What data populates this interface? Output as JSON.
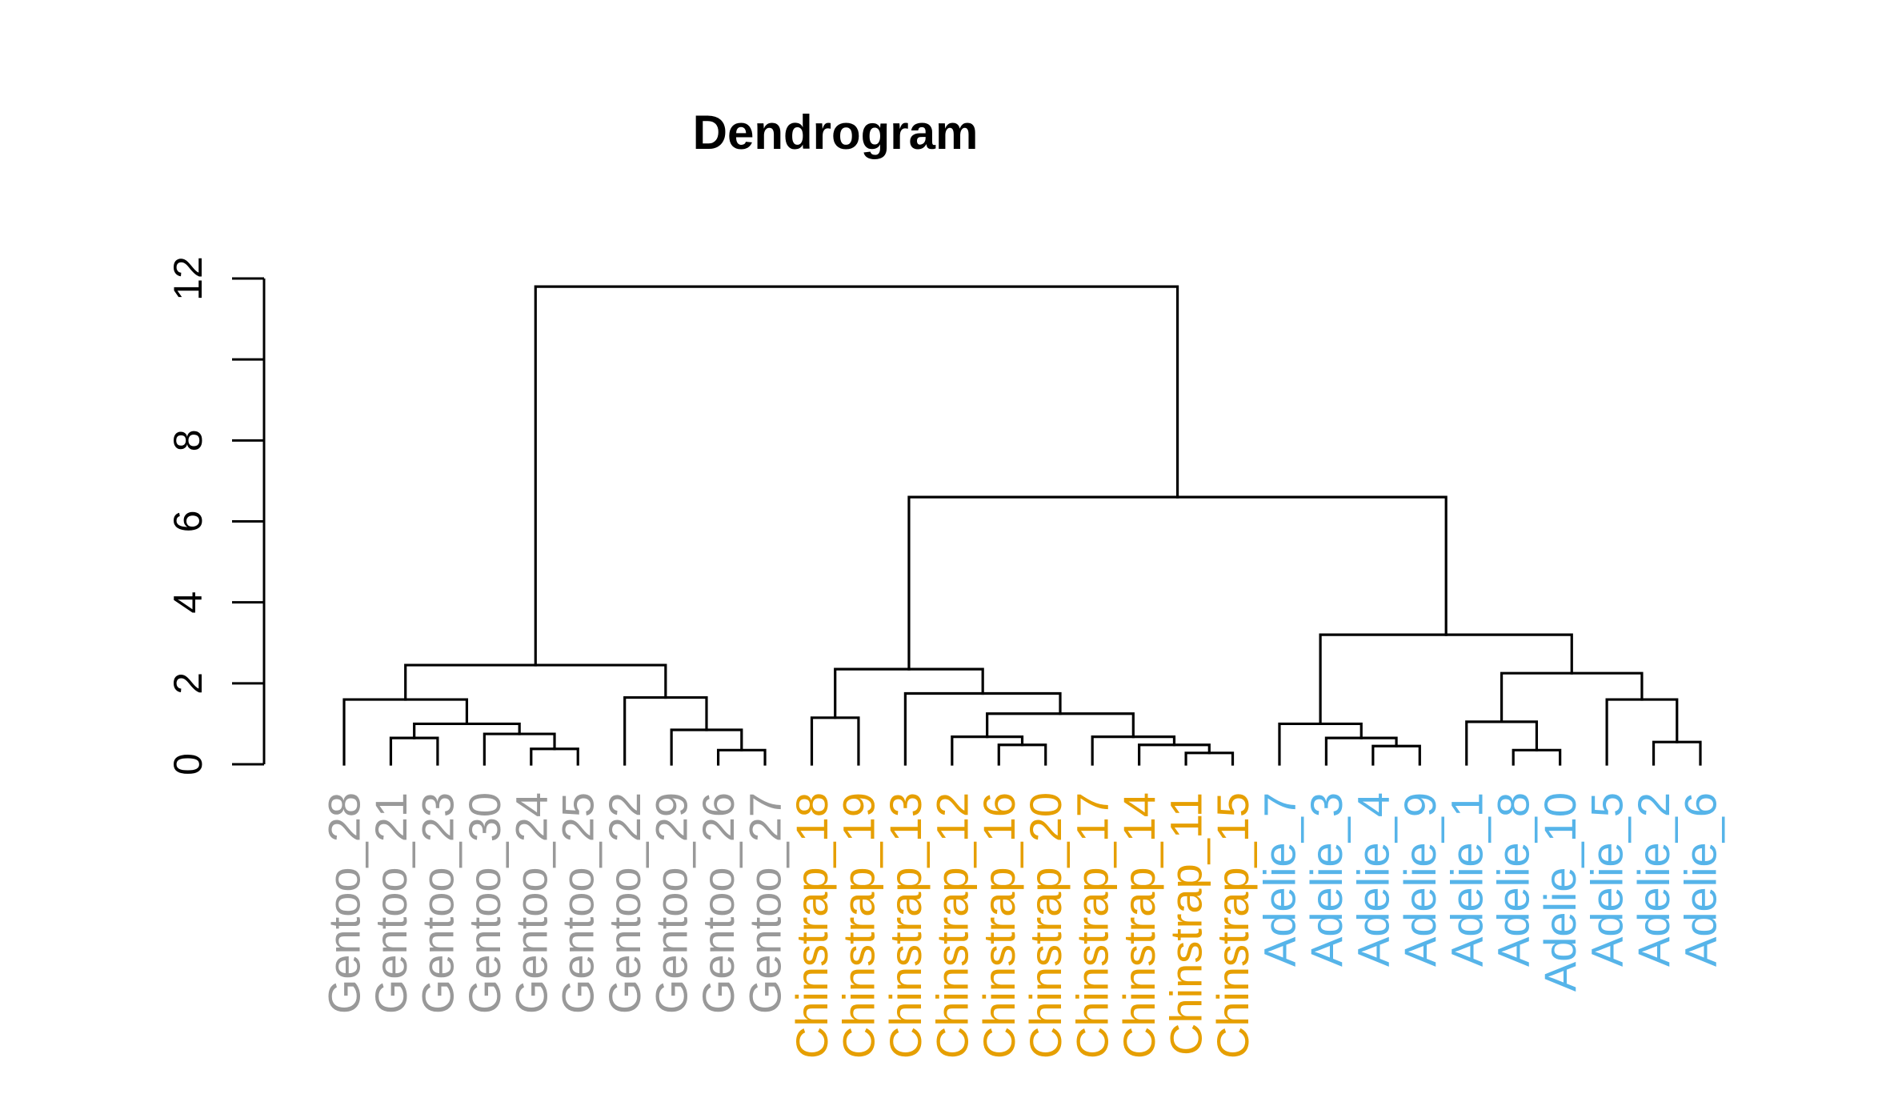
{
  "chart_data": {
    "type": "dendrogram",
    "title": "Dendrogram",
    "xlabel": "",
    "ylabel": "",
    "ylim": [
      0,
      12
    ],
    "yticks": [
      {
        "value": 0,
        "label": "0"
      },
      {
        "value": 2,
        "label": "2"
      },
      {
        "value": 4,
        "label": "4"
      },
      {
        "value": 6,
        "label": "6"
      },
      {
        "value": 8,
        "label": "8"
      },
      {
        "value": 10,
        "label": ""
      },
      {
        "value": 12,
        "label": "12"
      }
    ],
    "group_colors": {
      "Gentoo": "#999999",
      "Chinstrap": "#E69F00",
      "Adelie": "#56B4E9"
    },
    "leaves": [
      {
        "label": "Gentoo_28",
        "group": "Gentoo"
      },
      {
        "label": "Gentoo_21",
        "group": "Gentoo"
      },
      {
        "label": "Gentoo_23",
        "group": "Gentoo"
      },
      {
        "label": "Gentoo_30",
        "group": "Gentoo"
      },
      {
        "label": "Gentoo_24",
        "group": "Gentoo"
      },
      {
        "label": "Gentoo_25",
        "group": "Gentoo"
      },
      {
        "label": "Gentoo_22",
        "group": "Gentoo"
      },
      {
        "label": "Gentoo_29",
        "group": "Gentoo"
      },
      {
        "label": "Gentoo_26",
        "group": "Gentoo"
      },
      {
        "label": "Gentoo_27",
        "group": "Gentoo"
      },
      {
        "label": "Chinstrap_18",
        "group": "Chinstrap"
      },
      {
        "label": "Chinstrap_19",
        "group": "Chinstrap"
      },
      {
        "label": "Chinstrap_13",
        "group": "Chinstrap"
      },
      {
        "label": "Chinstrap_12",
        "group": "Chinstrap"
      },
      {
        "label": "Chinstrap_16",
        "group": "Chinstrap"
      },
      {
        "label": "Chinstrap_20",
        "group": "Chinstrap"
      },
      {
        "label": "Chinstrap_17",
        "group": "Chinstrap"
      },
      {
        "label": "Chinstrap_14",
        "group": "Chinstrap"
      },
      {
        "label": "Chinstrap_11",
        "group": "Chinstrap"
      },
      {
        "label": "Chinstrap_15",
        "group": "Chinstrap"
      },
      {
        "label": "Adelie_7",
        "group": "Adelie"
      },
      {
        "label": "Adelie_3",
        "group": "Adelie"
      },
      {
        "label": "Adelie_4",
        "group": "Adelie"
      },
      {
        "label": "Adelie_9",
        "group": "Adelie"
      },
      {
        "label": "Adelie_1",
        "group": "Adelie"
      },
      {
        "label": "Adelie_8",
        "group": "Adelie"
      },
      {
        "label": "Adelie_10",
        "group": "Adelie"
      },
      {
        "label": "Adelie_5",
        "group": "Adelie"
      },
      {
        "label": "Adelie_2",
        "group": "Adelie"
      },
      {
        "label": "Adelie_6",
        "group": "Adelie"
      }
    ],
    "merges": [
      {
        "a": 2,
        "b": 3,
        "height": 0.65
      },
      {
        "a": 5,
        "b": 6,
        "height": 0.38
      },
      {
        "a": 4,
        "b": -2,
        "height": 0.75
      },
      {
        "a": -1,
        "b": -3,
        "height": 1.0
      },
      {
        "a": 1,
        "b": -4,
        "height": 1.6
      },
      {
        "a": 9,
        "b": 10,
        "height": 0.35
      },
      {
        "a": 8,
        "b": -6,
        "height": 0.85
      },
      {
        "a": 7,
        "b": -7,
        "height": 1.65
      },
      {
        "a": -5,
        "b": -8,
        "height": 2.45
      },
      {
        "a": 11,
        "b": 12,
        "height": 1.15
      },
      {
        "a": 15,
        "b": 16,
        "height": 0.48
      },
      {
        "a": 14,
        "b": -11,
        "height": 0.68
      },
      {
        "a": 19,
        "b": 20,
        "height": 0.28
      },
      {
        "a": 18,
        "b": -13,
        "height": 0.48
      },
      {
        "a": 17,
        "b": -14,
        "height": 0.68
      },
      {
        "a": -12,
        "b": -15,
        "height": 1.25
      },
      {
        "a": 13,
        "b": -16,
        "height": 1.75
      },
      {
        "a": -10,
        "b": -17,
        "height": 2.35
      },
      {
        "a": 23,
        "b": 24,
        "height": 0.45
      },
      {
        "a": 22,
        "b": -19,
        "height": 0.65
      },
      {
        "a": 21,
        "b": -20,
        "height": 1.0
      },
      {
        "a": 26,
        "b": 27,
        "height": 0.35
      },
      {
        "a": 25,
        "b": -22,
        "height": 1.05
      },
      {
        "a": 29,
        "b": 30,
        "height": 0.55
      },
      {
        "a": 28,
        "b": -24,
        "height": 1.6
      },
      {
        "a": -23,
        "b": -25,
        "height": 2.25
      },
      {
        "a": -21,
        "b": -26,
        "height": 3.2
      },
      {
        "a": -18,
        "b": -27,
        "height": 6.6
      },
      {
        "a": -9,
        "b": -28,
        "height": 11.8
      }
    ]
  }
}
